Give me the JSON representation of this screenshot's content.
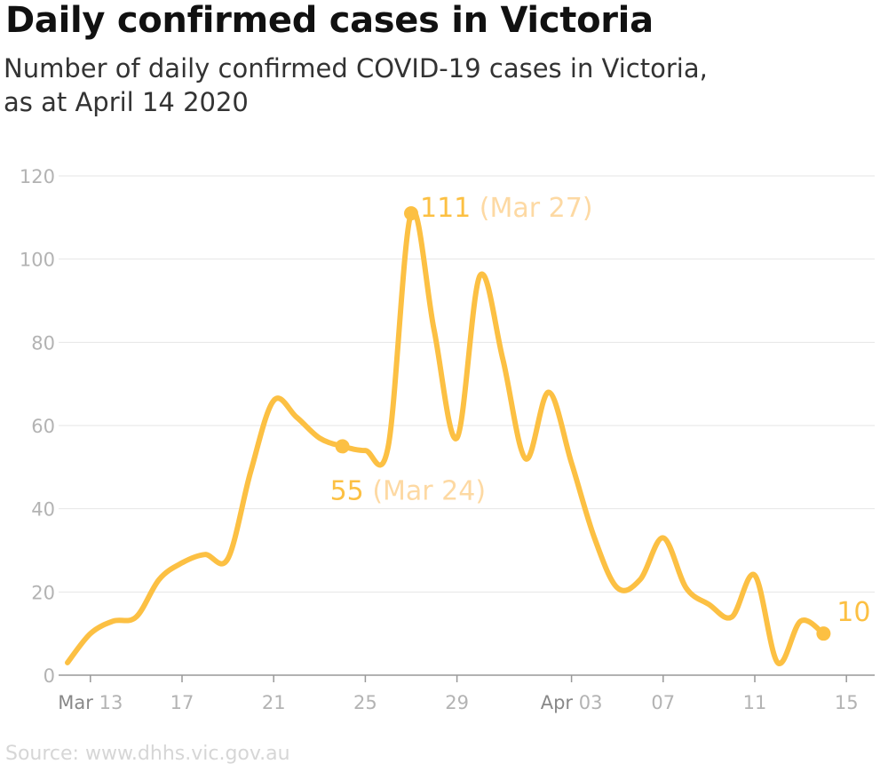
{
  "header": {
    "title": "Daily confirmed cases in Victoria",
    "subtitle_line1": "Number of daily confirmed COVID-19 cases in Victoria,",
    "subtitle_line2": "as at April 14 2020"
  },
  "footer": {
    "source": "Source: www.dhhs.vic.gov.au"
  },
  "colors": {
    "line": "#fcc043",
    "annotation_date": "#fdd9a3",
    "annotation_value": "#fcc043",
    "grid": "#e6e6e6",
    "axis": "#999999",
    "tick_label": "#b3b3b3"
  },
  "chart_data": {
    "type": "line",
    "title": "Daily confirmed cases in Victoria",
    "subtitle": "Number of daily confirmed COVID-19 cases in Victoria, as at April 14 2020",
    "xlabel": "",
    "ylabel": "",
    "ylim": [
      0,
      120
    ],
    "y_ticks": [
      0,
      20,
      40,
      60,
      80,
      100,
      120
    ],
    "grid": true,
    "x_ticks": [
      {
        "date": "2020-03-13",
        "month": "Mar",
        "day": "13"
      },
      {
        "date": "2020-03-17",
        "month": "",
        "day": "17"
      },
      {
        "date": "2020-03-21",
        "month": "",
        "day": "21"
      },
      {
        "date": "2020-03-25",
        "month": "",
        "day": "25"
      },
      {
        "date": "2020-03-29",
        "month": "",
        "day": "29"
      },
      {
        "date": "2020-04-03",
        "month": "Apr",
        "day": "03"
      },
      {
        "date": "2020-04-07",
        "month": "",
        "day": "07"
      },
      {
        "date": "2020-04-11",
        "month": "",
        "day": "11"
      },
      {
        "date": "2020-04-15",
        "month": "",
        "day": "15"
      }
    ],
    "series": [
      {
        "values": [
          {
            "date": "2020-03-13",
            "y": 10
          },
          {
            "date": "2020-03-14",
            "y": 13
          },
          {
            "date": "2020-03-15",
            "y": 14
          },
          {
            "date": "2020-03-16",
            "y": 23
          },
          {
            "date": "2020-03-17",
            "y": 27
          },
          {
            "date": "2020-03-18",
            "y": 29
          },
          {
            "date": "2020-03-19",
            "y": 28
          },
          {
            "date": "2020-03-20",
            "y": 49
          },
          {
            "date": "2020-03-21",
            "y": 66
          },
          {
            "date": "2020-03-22",
            "y": 62
          },
          {
            "date": "2020-03-23",
            "y": 57
          },
          {
            "date": "2020-03-24",
            "y": 55
          },
          {
            "date": "2020-03-25",
            "y": 54
          },
          {
            "date": "2020-03-26",
            "y": 55
          },
          {
            "date": "2020-03-27",
            "y": 111
          },
          {
            "date": "2020-03-28",
            "y": 83
          },
          {
            "date": "2020-03-29",
            "y": 57
          },
          {
            "date": "2020-03-30",
            "y": 96
          },
          {
            "date": "2020-03-31",
            "y": 76
          },
          {
            "date": "2020-04-01",
            "y": 52
          },
          {
            "date": "2020-04-02",
            "y": 68
          },
          {
            "date": "2020-04-03",
            "y": 51
          },
          {
            "date": "2020-04-04",
            "y": 33
          },
          {
            "date": "2020-04-05",
            "y": 21
          },
          {
            "date": "2020-04-06",
            "y": 23
          },
          {
            "date": "2020-04-07",
            "y": 33
          },
          {
            "date": "2020-04-08",
            "y": 21
          },
          {
            "date": "2020-04-09",
            "y": 17
          },
          {
            "date": "2020-04-10",
            "y": 14
          },
          {
            "date": "2020-04-11",
            "y": 24
          },
          {
            "date": "2020-04-12",
            "y": 3
          },
          {
            "date": "2020-04-13",
            "y": 13
          },
          {
            "date": "2020-04-14",
            "y": 10
          }
        ]
      }
    ],
    "annotations": [
      {
        "date": "2020-03-24",
        "y": 55,
        "value_label": "55",
        "date_label": "(Mar 24)",
        "placement": "below"
      },
      {
        "date": "2020-03-27",
        "y": 111,
        "value_label": "111",
        "date_label": "(Mar 27)",
        "placement": "right"
      },
      {
        "date": "2020-04-14",
        "y": 10,
        "value_label": "10",
        "date_label": "",
        "placement": "above"
      }
    ]
  }
}
